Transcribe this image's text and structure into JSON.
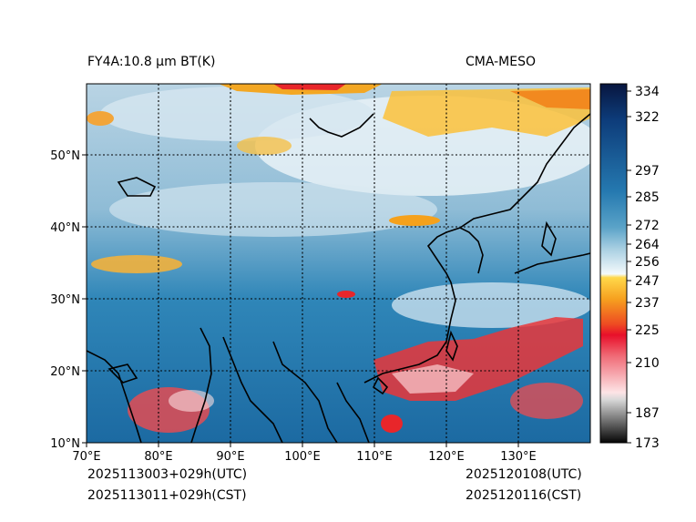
{
  "header": {
    "left_title": "FY4A:10.8 μm BT(K)",
    "right_title": "CMA-MESO"
  },
  "map": {
    "lon_labels": [
      "70°E",
      "80°E",
      "90°E",
      "100°E",
      "110°E",
      "120°E",
      "130°E"
    ],
    "lat_labels": [
      "10°N",
      "20°N",
      "30°N",
      "40°N",
      "50°N"
    ],
    "lon_range": [
      70,
      140
    ],
    "lat_range": [
      10,
      60
    ]
  },
  "colorbar": {
    "ticks": [
      "334",
      "322",
      "297",
      "285",
      "272",
      "264",
      "256",
      "247",
      "237",
      "225",
      "210",
      "187",
      "173"
    ],
    "range": [
      173,
      335
    ]
  },
  "footer": {
    "init_utc": "2025113003+029h(UTC)",
    "init_cst": "2025113011+029h(CST)",
    "valid_utc": "2025120108(UTC)",
    "valid_cst": "2025120116(CST)"
  },
  "colors": {
    "cold_cloud_red": "#e8262a",
    "mid_cloud_orange": "#f5a11c",
    "warm_surface_blue": "#1a6fa6",
    "deep_navy": "#0d1f5c"
  }
}
